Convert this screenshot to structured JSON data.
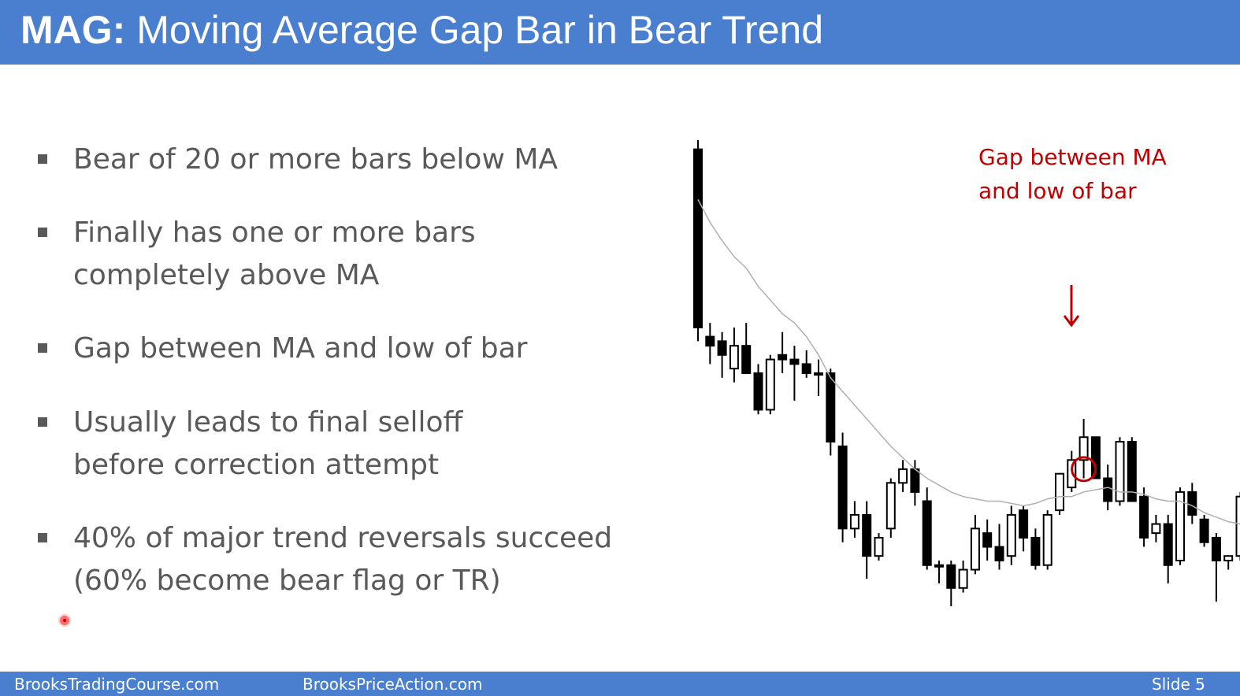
{
  "slide": {
    "title_prefix": "MAG:",
    "title_rest": " Moving Average Gap Bar in Bear Trend"
  },
  "bullets": [
    {
      "lines": [
        "Bear of 20 or more bars below MA"
      ]
    },
    {
      "lines": [
        "Finally has one or more bars",
        "completely above MA"
      ]
    },
    {
      "lines": [
        "Gap between MA and low of bar"
      ]
    },
    {
      "lines": [
        "Usually leads to final selloff",
        "before correction attempt"
      ]
    },
    {
      "lines": [
        "40% of major trend reversals succeed",
        "(60% become bear flag or TR)"
      ]
    }
  ],
  "chart_annotation": {
    "line1": "Gap between MA",
    "line2": "and low of bar",
    "color": "#c00000"
  },
  "footer": {
    "left": "BrooksTradingCourse.com",
    "center": "BrooksPriceAction.com",
    "right": "Slide  5"
  },
  "colors": {
    "header_bg": "#4a7fcf",
    "text": "#595959",
    "accent": "#c00000"
  },
  "chart_data": {
    "type": "candlestick",
    "highlight_index": 32,
    "candles": [
      {
        "o": 9.8,
        "h": 10.0,
        "l": 5.6,
        "c": 5.9
      },
      {
        "o": 5.7,
        "h": 6.0,
        "l": 5.1,
        "c": 5.5
      },
      {
        "o": 5.6,
        "h": 5.8,
        "l": 4.8,
        "c": 5.3
      },
      {
        "o": 5.0,
        "h": 5.9,
        "l": 4.7,
        "c": 5.5
      },
      {
        "o": 5.5,
        "h": 6.0,
        "l": 4.9,
        "c": 4.9
      },
      {
        "o": 4.9,
        "h": 5.1,
        "l": 4.0,
        "c": 4.1
      },
      {
        "o": 4.1,
        "h": 5.3,
        "l": 4.0,
        "c": 5.2
      },
      {
        "o": 5.3,
        "h": 5.8,
        "l": 4.9,
        "c": 5.2
      },
      {
        "o": 5.2,
        "h": 5.5,
        "l": 4.3,
        "c": 5.1
      },
      {
        "o": 5.1,
        "h": 5.4,
        "l": 4.8,
        "c": 4.9
      },
      {
        "o": 4.9,
        "h": 5.2,
        "l": 4.4,
        "c": 4.9
      },
      {
        "o": 4.9,
        "h": 5.0,
        "l": 3.1,
        "c": 3.4
      },
      {
        "o": 3.3,
        "h": 3.6,
        "l": 1.2,
        "c": 1.5
      },
      {
        "o": 1.5,
        "h": 2.1,
        "l": 1.3,
        "c": 1.8
      },
      {
        "o": 1.8,
        "h": 2.1,
        "l": 0.4,
        "c": 0.9
      },
      {
        "o": 0.9,
        "h": 1.4,
        "l": 0.8,
        "c": 1.3
      },
      {
        "o": 1.5,
        "h": 2.6,
        "l": 1.3,
        "c": 2.5
      },
      {
        "o": 2.5,
        "h": 3.0,
        "l": 2.3,
        "c": 2.8
      },
      {
        "o": 2.8,
        "h": 3.0,
        "l": 2.0,
        "c": 2.3
      },
      {
        "o": 2.1,
        "h": 2.4,
        "l": 0.6,
        "c": 0.7
      },
      {
        "o": 0.7,
        "h": 0.8,
        "l": 0.3,
        "c": 0.7
      },
      {
        "o": 0.7,
        "h": 0.8,
        "l": -0.2,
        "c": 0.2
      },
      {
        "o": 0.2,
        "h": 0.8,
        "l": 0.1,
        "c": 0.6
      },
      {
        "o": 0.6,
        "h": 1.8,
        "l": 0.5,
        "c": 1.5
      },
      {
        "o": 1.4,
        "h": 1.7,
        "l": 0.8,
        "c": 1.1
      },
      {
        "o": 1.1,
        "h": 1.6,
        "l": 0.6,
        "c": 0.8
      },
      {
        "o": 0.9,
        "h": 2.0,
        "l": 0.7,
        "c": 1.8
      },
      {
        "o": 1.9,
        "h": 2.0,
        "l": 1.0,
        "c": 1.3
      },
      {
        "o": 1.3,
        "h": 1.5,
        "l": 0.6,
        "c": 0.7
      },
      {
        "o": 0.7,
        "h": 1.9,
        "l": 0.6,
        "c": 1.8
      },
      {
        "o": 1.9,
        "h": 2.7,
        "l": 1.8,
        "c": 2.7
      },
      {
        "o": 2.4,
        "h": 3.2,
        "l": 2.3,
        "c": 3.0
      },
      {
        "o": 3.0,
        "h": 3.9,
        "l": 2.6,
        "c": 3.5
      },
      {
        "o": 3.5,
        "h": 3.5,
        "l": 2.6,
        "c": 2.6
      },
      {
        "o": 2.6,
        "h": 2.9,
        "l": 1.9,
        "c": 2.1
      },
      {
        "o": 2.1,
        "h": 3.5,
        "l": 2.0,
        "c": 3.4
      },
      {
        "o": 3.4,
        "h": 3.5,
        "l": 2.1,
        "c": 2.1
      },
      {
        "o": 2.2,
        "h": 2.4,
        "l": 1.1,
        "c": 1.3
      },
      {
        "o": 1.4,
        "h": 1.8,
        "l": 1.2,
        "c": 1.6
      },
      {
        "o": 1.6,
        "h": 1.8,
        "l": 0.3,
        "c": 0.7
      },
      {
        "o": 0.8,
        "h": 2.4,
        "l": 0.7,
        "c": 2.3
      },
      {
        "o": 2.3,
        "h": 2.5,
        "l": 1.6,
        "c": 1.8
      },
      {
        "o": 1.7,
        "h": 1.8,
        "l": 1.1,
        "c": 1.2
      },
      {
        "o": 1.3,
        "h": 1.4,
        "l": -0.1,
        "c": 0.8
      },
      {
        "o": 0.8,
        "h": 0.9,
        "l": 0.6,
        "c": 0.9
      },
      {
        "o": 0.9,
        "h": 2.3,
        "l": 0.8,
        "c": 2.2
      }
    ],
    "ma": [
      8.7,
      8.2,
      7.8,
      7.45,
      7.2,
      6.8,
      6.5,
      6.2,
      6.0,
      5.7,
      5.3,
      4.8,
      4.5,
      4.2,
      3.9,
      3.6,
      3.3,
      3.05,
      2.8,
      2.6,
      2.45,
      2.3,
      2.2,
      2.15,
      2.1,
      2.1,
      2.05,
      2.0,
      2.05,
      2.15,
      2.2,
      2.2,
      2.3,
      2.35,
      2.4,
      2.3,
      2.3,
      2.25,
      2.15,
      2.1,
      2.1,
      2.0,
      1.85,
      1.75,
      1.65,
      1.6
    ]
  }
}
